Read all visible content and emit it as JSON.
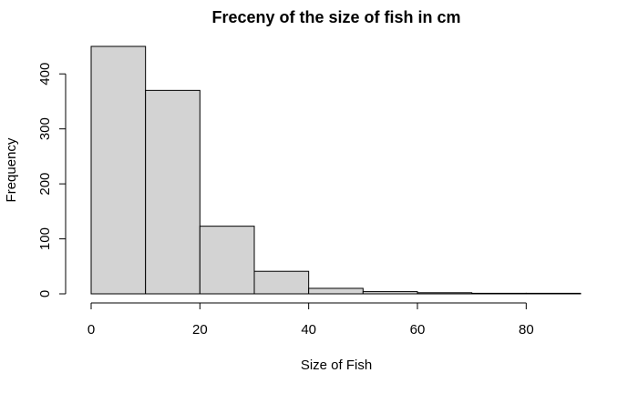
{
  "chart_data": {
    "type": "histogram",
    "title": "Freceny of the size of fish in cm",
    "x_label": "Size of Fish",
    "y_label": "Frequency",
    "bins": [
      0,
      10,
      20,
      30,
      40,
      50,
      60,
      70,
      80,
      90
    ],
    "values": [
      450,
      370,
      123,
      41,
      10,
      4,
      2,
      1,
      1
    ],
    "color": "#d3d3d3",
    "edge_color": "#000000",
    "xlim": [
      0,
      90
    ],
    "xticks": [
      0,
      20,
      40,
      60,
      80
    ],
    "ylim": [
      0,
      450
    ],
    "yticks": [
      0,
      100,
      200,
      300,
      400
    ],
    "grid": false
  }
}
